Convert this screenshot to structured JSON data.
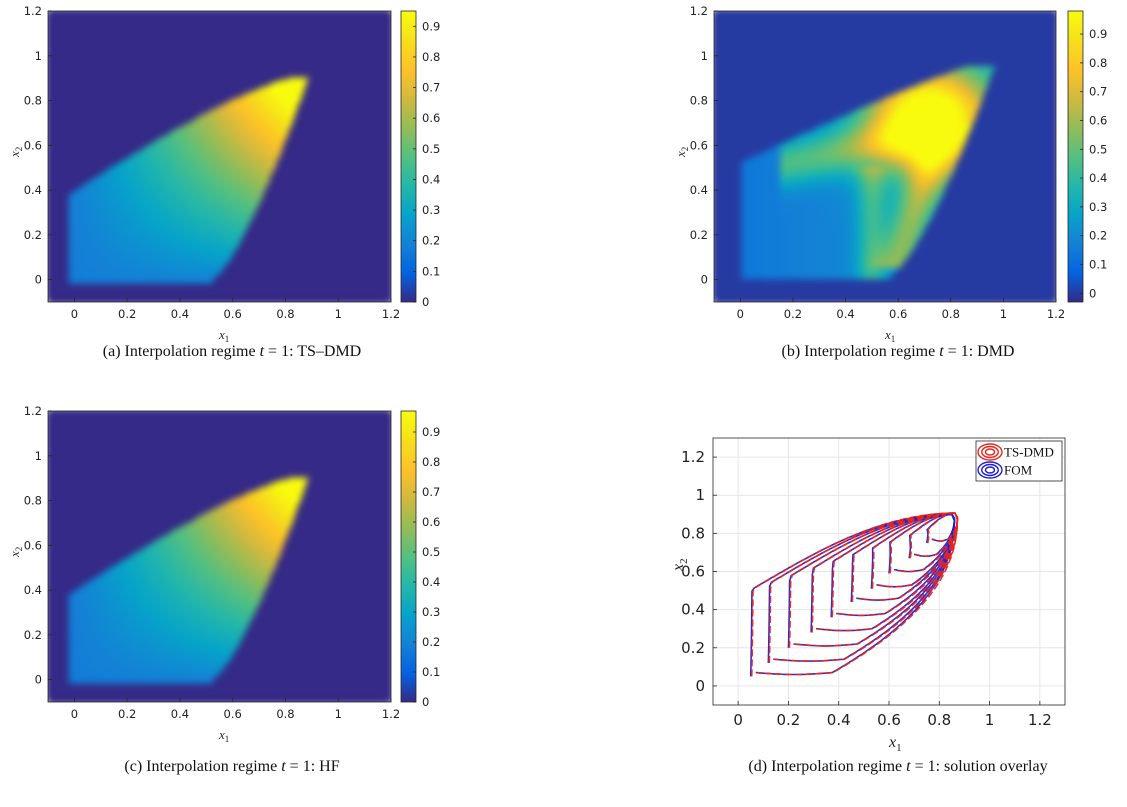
{
  "chart_data": [
    {
      "id": "a",
      "type": "heatmap",
      "caption": "(a) Interpolation regime t = 1: TS–DMD",
      "caption_parts": [
        "(a) Interpolation regime ",
        "t",
        " = 1:  TS–DMD"
      ],
      "xlabel": "x1",
      "ylabel": "x2",
      "xlim": [
        -0.1,
        1.2
      ],
      "ylim": [
        -0.1,
        1.2
      ],
      "xticks": [
        "0",
        "0.2",
        "0.4",
        "0.6",
        "0.8",
        "1",
        "1.2"
      ],
      "yticks": [
        "0",
        "0.2",
        "0.4",
        "0.6",
        "0.8",
        "1",
        "1.2"
      ],
      "clim": [
        0,
        0.95
      ],
      "colorbar_ticks": [
        "0",
        "0.1",
        "0.2",
        "0.3",
        "0.4",
        "0.5",
        "0.6",
        "0.7",
        "0.8",
        "0.9"
      ],
      "colormap": "parula",
      "field": {
        "shape": "smooth",
        "peak": [
          0.8,
          0.8
        ],
        "max": 0.95
      }
    },
    {
      "id": "b",
      "type": "heatmap",
      "caption": "(b) Interpolation regime t = 1: DMD",
      "caption_parts": [
        "(b) Interpolation regime ",
        "t",
        " = 1:  DMD"
      ],
      "xlabel": "x1",
      "ylabel": "x2",
      "xlim": [
        -0.1,
        1.2
      ],
      "ylim": [
        -0.1,
        1.2
      ],
      "xticks": [
        "0",
        "0.2",
        "0.4",
        "0.6",
        "0.8",
        "1",
        "1.2"
      ],
      "yticks": [
        "0",
        "0.2",
        "0.4",
        "0.6",
        "0.8",
        "1",
        "1.2"
      ],
      "clim": [
        -0.03,
        0.98
      ],
      "colorbar_ticks": [
        "0",
        "0.1",
        "0.2",
        "0.3",
        "0.4",
        "0.5",
        "0.6",
        "0.7",
        "0.8",
        "0.9"
      ],
      "colormap": "parula",
      "field": {
        "shape": "artifacts",
        "peak": [
          0.72,
          0.72
        ],
        "max": 0.98
      }
    },
    {
      "id": "c",
      "type": "heatmap",
      "caption": "(c) Interpolation regime t = 1: HF",
      "caption_parts": [
        "(c) Interpolation regime ",
        "t",
        " = 1:  HF"
      ],
      "xlabel": "x1",
      "ylabel": "x2",
      "xlim": [
        -0.1,
        1.2
      ],
      "ylim": [
        -0.1,
        1.2
      ],
      "xticks": [
        "0",
        "0.2",
        "0.4",
        "0.6",
        "0.8",
        "1",
        "1.2"
      ],
      "yticks": [
        "0",
        "0.2",
        "0.4",
        "0.6",
        "0.8",
        "1",
        "1.2"
      ],
      "clim": [
        0,
        0.97
      ],
      "colorbar_ticks": [
        "0",
        "0.1",
        "0.2",
        "0.3",
        "0.4",
        "0.5",
        "0.6",
        "0.7",
        "0.8",
        "0.9"
      ],
      "colormap": "parula",
      "field": {
        "shape": "smooth",
        "peak": [
          0.8,
          0.82
        ],
        "max": 0.97
      }
    },
    {
      "id": "d",
      "type": "line",
      "caption": "(d) Interpolation regime t = 1: solution overlay",
      "caption_parts": [
        "(d) Interpolation regime ",
        "t",
        " = 1:  solution overlay"
      ],
      "xlabel": "x1",
      "ylabel": "x2",
      "xlim": [
        -0.1,
        1.3
      ],
      "ylim": [
        -0.1,
        1.3
      ],
      "xticks": [
        "0",
        "0.2",
        "0.4",
        "0.6",
        "0.8",
        "1",
        "1.2"
      ],
      "yticks": [
        "0",
        "0.2",
        "0.4",
        "0.6",
        "0.8",
        "1",
        "1.2"
      ],
      "grid": true,
      "legend_position": "top-right",
      "series": [
        {
          "name": "TS-DMD",
          "color": "#e8261c"
        },
        {
          "name": "FOM",
          "color": "#1f1fd4"
        }
      ],
      "trajectories": [
        {
          "x0": 0.05,
          "y0": 0.05
        },
        {
          "x0": 0.12,
          "y0": 0.12
        },
        {
          "x0": 0.2,
          "y0": 0.2
        },
        {
          "x0": 0.29,
          "y0": 0.28
        },
        {
          "x0": 0.37,
          "y0": 0.36
        },
        {
          "x0": 0.45,
          "y0": 0.44
        },
        {
          "x0": 0.53,
          "y0": 0.51
        },
        {
          "x0": 0.6,
          "y0": 0.59
        },
        {
          "x0": 0.68,
          "y0": 0.67
        },
        {
          "x0": 0.75,
          "y0": 0.75
        }
      ],
      "corner": {
        "x": 0.88,
        "y": 0.9
      }
    }
  ],
  "colors": {
    "background": "#ffffff",
    "axis": "#222222",
    "grid": "#e6e6e6"
  }
}
